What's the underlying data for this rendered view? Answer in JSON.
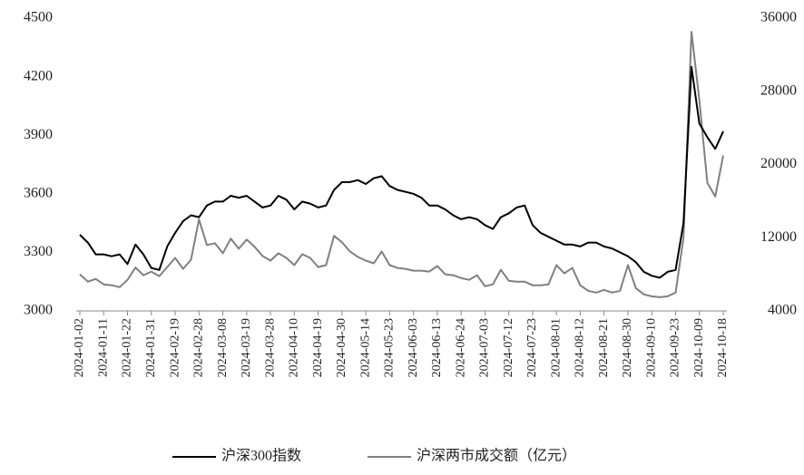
{
  "chart_data": {
    "type": "line",
    "categories": [
      "2024-01-02",
      null,
      null,
      "2024-01-11",
      null,
      null,
      "2024-01-22",
      null,
      null,
      "2024-01-31",
      null,
      null,
      "2024-02-19",
      null,
      null,
      "2024-02-28",
      null,
      null,
      "2024-03-08",
      null,
      null,
      "2024-03-19",
      null,
      null,
      "2024-03-28",
      null,
      null,
      "2024-04-10",
      null,
      null,
      "2024-04-19",
      null,
      null,
      "2024-04-30",
      null,
      null,
      "2024-05-14",
      null,
      null,
      "2024-05-23",
      null,
      null,
      "2024-06-03",
      null,
      null,
      "2024-06-13",
      null,
      null,
      "2024-06-24",
      null,
      null,
      "2024-07-03",
      null,
      null,
      "2024-07-12",
      null,
      null,
      "2024-07-23",
      null,
      null,
      "2024-08-01",
      null,
      null,
      "2024-08-12",
      null,
      null,
      "2024-08-21",
      null,
      null,
      "2024-08-30",
      null,
      null,
      "2024-09-10",
      null,
      null,
      "2024-09-23",
      null,
      null,
      "2024-10-09",
      null,
      null,
      "2024-10-18"
    ],
    "series": [
      {
        "name": "沪深300指数",
        "color": "#000000",
        "values": [
          3390,
          3350,
          3290,
          3290,
          3280,
          3290,
          3240,
          3340,
          3290,
          3220,
          3210,
          3330,
          3400,
          3460,
          3490,
          3480,
          3540,
          3560,
          3560,
          3590,
          3580,
          3590,
          3560,
          3530,
          3540,
          3590,
          3570,
          3520,
          3560,
          3550,
          3530,
          3540,
          3620,
          3660,
          3660,
          3670,
          3650,
          3680,
          3690,
          3640,
          3620,
          3610,
          3600,
          3580,
          3540,
          3540,
          3520,
          3490,
          3470,
          3480,
          3470,
          3440,
          3420,
          3480,
          3500,
          3530,
          3540,
          3440,
          3400,
          3380,
          3360,
          3340,
          3340,
          3330,
          3350,
          3350,
          3330,
          3320,
          3300,
          3280,
          3250,
          3200,
          3180,
          3170,
          3200,
          3210,
          3450,
          4250,
          3960,
          3890,
          3830,
          3920
        ]
      },
      {
        "name": "沪深两市成交额（亿元）",
        "color": "#808080",
        "axis": "y2",
        "values": [
          8000,
          7200,
          7500,
          6900,
          6800,
          6600,
          7400,
          8750,
          7900,
          8300,
          7800,
          8800,
          9800,
          8600,
          9600,
          14000,
          11200,
          11400,
          10300,
          11900,
          10800,
          11800,
          11000,
          10000,
          9500,
          10300,
          9800,
          9000,
          10200,
          9800,
          8800,
          9000,
          12200,
          11500,
          10500,
          9900,
          9500,
          9200,
          10500,
          9000,
          8700,
          8600,
          8400,
          8400,
          8300,
          8900,
          8000,
          7900,
          7600,
          7400,
          7900,
          6700,
          6900,
          8500,
          7300,
          7200,
          7200,
          6800,
          6800,
          6900,
          9000,
          8100,
          8700,
          6800,
          6200,
          6000,
          6300,
          6000,
          6200,
          9000,
          6500,
          5800,
          5600,
          5500,
          5600,
          6000,
          12000,
          34500,
          27000,
          18000,
          16500,
          21000
        ]
      }
    ],
    "ylim": [
      3000,
      4500
    ],
    "yticks": [
      3000,
      3300,
      3600,
      3900,
      4200,
      4500
    ],
    "y2lim": [
      4000,
      36000
    ],
    "y2ticks": [
      4000,
      12000,
      20000,
      28000,
      36000
    ],
    "grid": false,
    "legend": "bottom"
  }
}
